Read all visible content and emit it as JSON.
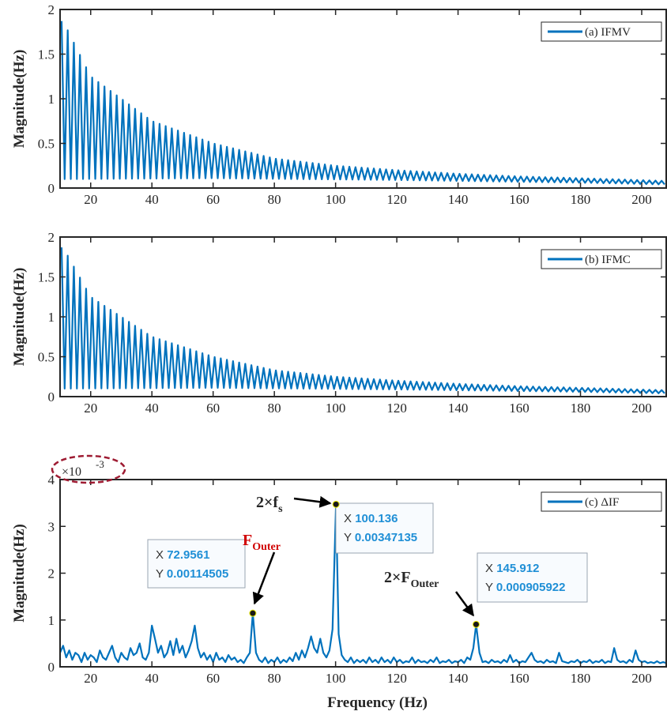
{
  "colors": {
    "series": "#0072BD",
    "axis": "#262626",
    "annotation_red": "#d00000",
    "tip_value": "#1f8fd6",
    "ellipse": "#9e1b32"
  },
  "chart_data": [
    {
      "type": "line",
      "panel": "a",
      "xlabel": "",
      "ylabel": "Magnitude(Hz)",
      "xlim": [
        10,
        208
      ],
      "ylim": [
        0,
        2
      ],
      "xticks": [
        "20",
        "40",
        "60",
        "80",
        "100",
        "120",
        "140",
        "160",
        "180",
        "200"
      ],
      "yticks": [
        "0",
        "0.5",
        "1",
        "1.5",
        "2"
      ],
      "legend_position": "top-right",
      "series": [
        {
          "name": "(a) IFMV",
          "pattern": "oscillating-decay",
          "oscillation_period_hz": 2,
          "envelope_max": [
            [
              11,
              1.87
            ],
            [
              20,
              1.25
            ],
            [
              40,
              0.75
            ],
            [
              60,
              0.5
            ],
            [
              80,
              0.33
            ],
            [
              100,
              0.25
            ],
            [
              120,
              0.2
            ],
            [
              140,
              0.16
            ],
            [
              160,
              0.13
            ],
            [
              180,
              0.11
            ],
            [
              208,
              0.08
            ]
          ],
          "envelope_min": [
            [
              11,
              0.1
            ],
            [
              60,
              0.11
            ],
            [
              120,
              0.09
            ],
            [
              180,
              0.06
            ],
            [
              208,
              0.04
            ]
          ]
        }
      ]
    },
    {
      "type": "line",
      "panel": "b",
      "xlabel": "",
      "ylabel": "Magnitude(Hz)",
      "xlim": [
        10,
        208
      ],
      "ylim": [
        0,
        2
      ],
      "xticks": [
        "20",
        "40",
        "60",
        "80",
        "100",
        "120",
        "140",
        "160",
        "180",
        "200"
      ],
      "yticks": [
        "0",
        "0.5",
        "1",
        "1.5",
        "2"
      ],
      "legend_position": "top-right",
      "series": [
        {
          "name": "(b) IFMC",
          "pattern": "oscillating-decay",
          "oscillation_period_hz": 2,
          "envelope_max": [
            [
              11,
              1.87
            ],
            [
              20,
              1.25
            ],
            [
              40,
              0.75
            ],
            [
              60,
              0.5
            ],
            [
              80,
              0.33
            ],
            [
              100,
              0.25
            ],
            [
              120,
              0.2
            ],
            [
              140,
              0.16
            ],
            [
              160,
              0.13
            ],
            [
              180,
              0.11
            ],
            [
              208,
              0.08
            ]
          ],
          "envelope_min": [
            [
              11,
              0.1
            ],
            [
              60,
              0.11
            ],
            [
              120,
              0.09
            ],
            [
              180,
              0.06
            ],
            [
              208,
              0.04
            ]
          ]
        }
      ]
    },
    {
      "type": "line",
      "panel": "c",
      "xlabel": "Frequency (Hz)",
      "ylabel": "Magnitude(Hz)",
      "xlim": [
        10,
        208
      ],
      "ylim": [
        0,
        4
      ],
      "y_multiplier": "×10",
      "y_multiplier_exp": "-3",
      "xticks": [
        "20",
        "40",
        "60",
        "80",
        "100",
        "120",
        "140",
        "160",
        "180",
        "200"
      ],
      "yticks": [
        "0",
        "1",
        "2",
        "3",
        "4"
      ],
      "legend_position": "top-right",
      "series": [
        {
          "name": "(c) ΔIF",
          "points": [
            [
              10,
              0.3
            ],
            [
              11,
              0.45
            ],
            [
              12,
              0.2
            ],
            [
              13,
              0.35
            ],
            [
              14,
              0.15
            ],
            [
              15,
              0.3
            ],
            [
              16,
              0.25
            ],
            [
              17,
              0.1
            ],
            [
              18,
              0.3
            ],
            [
              19,
              0.15
            ],
            [
              20,
              0.25
            ],
            [
              21,
              0.2
            ],
            [
              22,
              0.1
            ],
            [
              23,
              0.35
            ],
            [
              24,
              0.2
            ],
            [
              25,
              0.15
            ],
            [
              26,
              0.3
            ],
            [
              27,
              0.45
            ],
            [
              28,
              0.2
            ],
            [
              29,
              0.1
            ],
            [
              30,
              0.3
            ],
            [
              31,
              0.2
            ],
            [
              32,
              0.15
            ],
            [
              33,
              0.4
            ],
            [
              34,
              0.25
            ],
            [
              35,
              0.3
            ],
            [
              36,
              0.5
            ],
            [
              37,
              0.2
            ],
            [
              38,
              0.15
            ],
            [
              39,
              0.3
            ],
            [
              40,
              0.88
            ],
            [
              41,
              0.6
            ],
            [
              42,
              0.3
            ],
            [
              43,
              0.45
            ],
            [
              44,
              0.2
            ],
            [
              45,
              0.3
            ],
            [
              46,
              0.55
            ],
            [
              47,
              0.25
            ],
            [
              48,
              0.6
            ],
            [
              49,
              0.3
            ],
            [
              50,
              0.45
            ],
            [
              51,
              0.2
            ],
            [
              52,
              0.35
            ],
            [
              53,
              0.55
            ],
            [
              54,
              0.88
            ],
            [
              55,
              0.4
            ],
            [
              56,
              0.2
            ],
            [
              57,
              0.3
            ],
            [
              58,
              0.15
            ],
            [
              59,
              0.25
            ],
            [
              60,
              0.1
            ],
            [
              61,
              0.3
            ],
            [
              62,
              0.15
            ],
            [
              63,
              0.2
            ],
            [
              64,
              0.1
            ],
            [
              65,
              0.25
            ],
            [
              66,
              0.15
            ],
            [
              67,
              0.2
            ],
            [
              68,
              0.1
            ],
            [
              69,
              0.15
            ],
            [
              70,
              0.08
            ],
            [
              71,
              0.2
            ],
            [
              72,
              0.3
            ],
            [
              72.96,
              1.145
            ],
            [
              74,
              0.3
            ],
            [
              75,
              0.15
            ],
            [
              76,
              0.1
            ],
            [
              77,
              0.2
            ],
            [
              78,
              0.08
            ],
            [
              79,
              0.15
            ],
            [
              80,
              0.1
            ],
            [
              81,
              0.2
            ],
            [
              82,
              0.08
            ],
            [
              83,
              0.15
            ],
            [
              84,
              0.1
            ],
            [
              85,
              0.2
            ],
            [
              86,
              0.12
            ],
            [
              87,
              0.3
            ],
            [
              88,
              0.15
            ],
            [
              89,
              0.35
            ],
            [
              90,
              0.2
            ],
            [
              91,
              0.4
            ],
            [
              92,
              0.65
            ],
            [
              93,
              0.4
            ],
            [
              94,
              0.3
            ],
            [
              95,
              0.6
            ],
            [
              96,
              0.3
            ],
            [
              97,
              0.2
            ],
            [
              98,
              0.35
            ],
            [
              99,
              0.8
            ],
            [
              100.14,
              3.471
            ],
            [
              101,
              0.7
            ],
            [
              102,
              0.25
            ],
            [
              103,
              0.15
            ],
            [
              104,
              0.1
            ],
            [
              105,
              0.2
            ],
            [
              106,
              0.08
            ],
            [
              107,
              0.15
            ],
            [
              108,
              0.1
            ],
            [
              109,
              0.15
            ],
            [
              110,
              0.08
            ],
            [
              111,
              0.2
            ],
            [
              112,
              0.1
            ],
            [
              113,
              0.15
            ],
            [
              114,
              0.08
            ],
            [
              115,
              0.2
            ],
            [
              116,
              0.1
            ],
            [
              117,
              0.15
            ],
            [
              118,
              0.08
            ],
            [
              119,
              0.2
            ],
            [
              120,
              0.1
            ],
            [
              121,
              0.15
            ],
            [
              122,
              0.08
            ],
            [
              123,
              0.12
            ],
            [
              124,
              0.1
            ],
            [
              125,
              0.2
            ],
            [
              126,
              0.08
            ],
            [
              127,
              0.15
            ],
            [
              128,
              0.1
            ],
            [
              129,
              0.12
            ],
            [
              130,
              0.08
            ],
            [
              131,
              0.15
            ],
            [
              132,
              0.1
            ],
            [
              133,
              0.2
            ],
            [
              134,
              0.08
            ],
            [
              135,
              0.12
            ],
            [
              136,
              0.1
            ],
            [
              137,
              0.15
            ],
            [
              138,
              0.08
            ],
            [
              139,
              0.12
            ],
            [
              140,
              0.1
            ],
            [
              141,
              0.15
            ],
            [
              142,
              0.08
            ],
            [
              143,
              0.2
            ],
            [
              144,
              0.15
            ],
            [
              145,
              0.4
            ],
            [
              145.91,
              0.906
            ],
            [
              147,
              0.3
            ],
            [
              148,
              0.1
            ],
            [
              149,
              0.12
            ],
            [
              150,
              0.08
            ],
            [
              151,
              0.15
            ],
            [
              152,
              0.1
            ],
            [
              153,
              0.12
            ],
            [
              154,
              0.08
            ],
            [
              155,
              0.15
            ],
            [
              156,
              0.1
            ],
            [
              157,
              0.25
            ],
            [
              158,
              0.1
            ],
            [
              159,
              0.15
            ],
            [
              160,
              0.08
            ],
            [
              161,
              0.12
            ],
            [
              162,
              0.1
            ],
            [
              163,
              0.2
            ],
            [
              164,
              0.3
            ],
            [
              165,
              0.15
            ],
            [
              166,
              0.1
            ],
            [
              167,
              0.12
            ],
            [
              168,
              0.08
            ],
            [
              169,
              0.15
            ],
            [
              170,
              0.1
            ],
            [
              171,
              0.12
            ],
            [
              172,
              0.08
            ],
            [
              173,
              0.3
            ],
            [
              174,
              0.12
            ],
            [
              175,
              0.1
            ],
            [
              176,
              0.08
            ],
            [
              177,
              0.12
            ],
            [
              178,
              0.1
            ],
            [
              179,
              0.15
            ],
            [
              180,
              0.08
            ],
            [
              181,
              0.12
            ],
            [
              182,
              0.1
            ],
            [
              183,
              0.15
            ],
            [
              184,
              0.08
            ],
            [
              185,
              0.12
            ],
            [
              186,
              0.1
            ],
            [
              187,
              0.15
            ],
            [
              188,
              0.08
            ],
            [
              189,
              0.12
            ],
            [
              190,
              0.1
            ],
            [
              191,
              0.4
            ],
            [
              192,
              0.15
            ],
            [
              193,
              0.1
            ],
            [
              194,
              0.12
            ],
            [
              195,
              0.08
            ],
            [
              196,
              0.15
            ],
            [
              197,
              0.1
            ],
            [
              198,
              0.35
            ],
            [
              199,
              0.15
            ],
            [
              200,
              0.1
            ],
            [
              201,
              0.12
            ],
            [
              202,
              0.08
            ],
            [
              203,
              0.1
            ],
            [
              204,
              0.08
            ],
            [
              205,
              0.12
            ],
            [
              206,
              0.08
            ],
            [
              207,
              0.1
            ],
            [
              208,
              0.08
            ]
          ]
        }
      ],
      "datatips": [
        {
          "x_label": "X",
          "x_value": "72.9561",
          "y_label": "Y",
          "y_value": "0.00114505",
          "x": 72.9561,
          "y": 1.14505
        },
        {
          "x_label": "X",
          "x_value": "100.136",
          "y_label": "Y",
          "y_value": "0.00347135",
          "x": 100.136,
          "y": 3.47135
        },
        {
          "x_label": "X",
          "x_value": "145.912",
          "y_label": "Y",
          "y_value": "0.000905922",
          "x": 145.912,
          "y": 0.905922
        }
      ],
      "annotations": [
        {
          "id": "fs",
          "base": "2×f",
          "sub": "s",
          "color": "#262626",
          "points_to_x": 100.136,
          "points_to_y": 3.47135
        },
        {
          "id": "fouter",
          "base": "F",
          "sub": "Outer",
          "color": "#d00000",
          "points_to_x": 72.9561,
          "points_to_y": 1.14505
        },
        {
          "id": "fouter2",
          "base": "2×F",
          "sub": "Outer",
          "color": "#262626",
          "points_to_x": 145.912,
          "points_to_y": 0.905922
        }
      ]
    }
  ]
}
